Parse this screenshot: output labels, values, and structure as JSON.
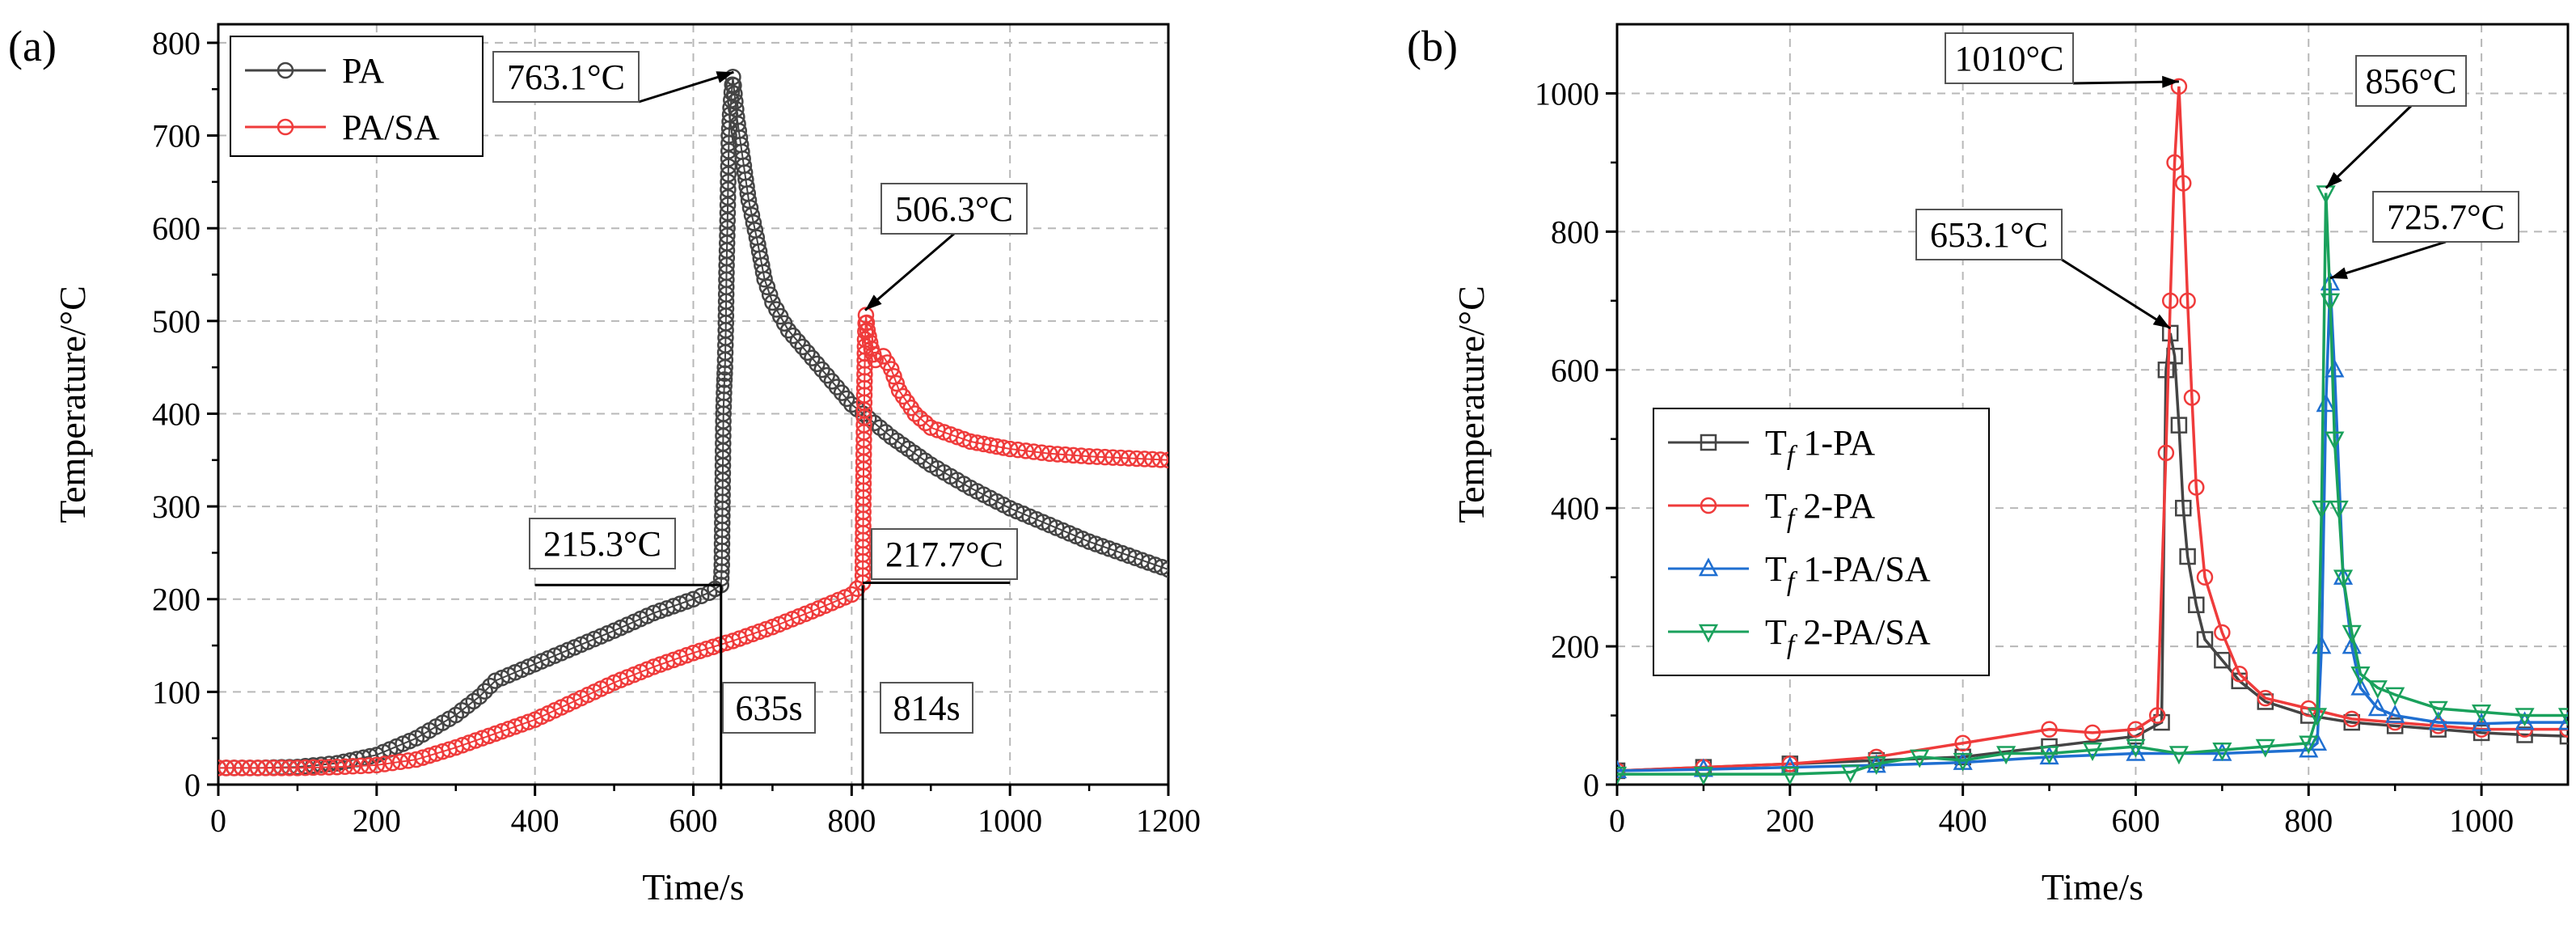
{
  "colors": {
    "pa": "#444444",
    "pasa": "#ef3b3b",
    "tf1_pa": "#444444",
    "tf2_pa": "#ef3b3b",
    "tf1_pasa": "#1f6fd1",
    "tf2_pasa": "#1aa15c",
    "grid": "#b8b8b8"
  },
  "chart_data": [
    {
      "panel_label": "(a)",
      "type": "scatter",
      "title": "",
      "xlabel": "Time/s",
      "ylabel": "Temperature/°C",
      "xlim": [
        0,
        1200
      ],
      "ylim": [
        0,
        820
      ],
      "xticks": [
        0,
        200,
        400,
        600,
        800,
        1000,
        1200
      ],
      "yticks": [
        0,
        100,
        200,
        300,
        400,
        500,
        600,
        700,
        800
      ],
      "grid": true,
      "legend_position": "top-left",
      "series": [
        {
          "name": "PA",
          "color": "#444444",
          "marker": "circle",
          "x": [
            0,
            50,
            100,
            150,
            200,
            250,
            300,
            330,
            350,
            400,
            450,
            500,
            550,
            600,
            620,
            635,
            636,
            637,
            638,
            639,
            640,
            641,
            642,
            643,
            644,
            645,
            647,
            650,
            652,
            655,
            660,
            665,
            670,
            680,
            690,
            700,
            720,
            750,
            800,
            850,
            900,
            950,
            1000,
            1050,
            1100,
            1150,
            1200
          ],
          "y": [
            18,
            18,
            19,
            23,
            32,
            50,
            75,
            95,
            112,
            130,
            148,
            166,
            185,
            200,
            207,
            215.3,
            237,
            320,
            400,
            430,
            450,
            490,
            560,
            600,
            650,
            700,
            730,
            763.1,
            745,
            720,
            690,
            660,
            630,
            590,
            545,
            520,
            490,
            460,
            410,
            375,
            345,
            320,
            298,
            280,
            262,
            247,
            232
          ]
        },
        {
          "name": "PA/SA",
          "color": "#ef3b3b",
          "marker": "circle",
          "x": [
            0,
            50,
            100,
            150,
            200,
            250,
            300,
            350,
            400,
            450,
            500,
            550,
            600,
            650,
            700,
            750,
            800,
            814,
            815,
            816,
            817,
            818,
            820,
            825,
            830,
            840,
            850,
            860,
            880,
            900,
            950,
            1000,
            1050,
            1100,
            1150,
            1200
          ],
          "y": [
            18,
            18,
            18,
            19,
            21,
            27,
            40,
            55,
            70,
            90,
            110,
            127,
            142,
            155,
            170,
            187,
            205,
            217.7,
            340,
            420,
            480,
            506.3,
            490,
            470,
            458,
            462,
            448,
            425,
            400,
            385,
            370,
            362,
            357,
            354,
            352,
            350
          ]
        }
      ],
      "annotations": [
        {
          "text": "763.1°C",
          "x": 651,
          "y": 763.1
        },
        {
          "text": "506.3°C",
          "x": 817,
          "y": 506.3
        },
        {
          "text": "215.3°C",
          "x": 635,
          "y": 215.3
        },
        {
          "text": "217.7°C",
          "x": 814,
          "y": 217.7
        },
        {
          "text": "635s",
          "x": 635,
          "y": 0
        },
        {
          "text": "814s",
          "x": 814,
          "y": 0
        }
      ]
    },
    {
      "panel_label": "(b)",
      "type": "line",
      "title": "",
      "xlabel": "Time/s",
      "ylabel": "Temperature/°C",
      "xlim": [
        0,
        1100
      ],
      "ylim": [
        0,
        1100
      ],
      "xticks": [
        0,
        200,
        400,
        600,
        800,
        1000
      ],
      "yticks": [
        0,
        200,
        400,
        600,
        800,
        1000
      ],
      "grid": true,
      "legend_position": "center-left",
      "series": [
        {
          "name": "T",
          "sub": "f",
          "suffix": " 1-PA",
          "color": "#444444",
          "marker": "square",
          "x": [
            0,
            100,
            200,
            300,
            400,
            500,
            600,
            630,
            635,
            640,
            645,
            650,
            655,
            660,
            670,
            680,
            700,
            720,
            750,
            800,
            850,
            900,
            950,
            1000,
            1050,
            1100
          ],
          "y": [
            20,
            25,
            30,
            35,
            40,
            55,
            70,
            90,
            600,
            653.1,
            620,
            520,
            400,
            330,
            260,
            210,
            180,
            150,
            120,
            100,
            90,
            85,
            80,
            75,
            72,
            70
          ]
        },
        {
          "name": "T",
          "sub": "f",
          "suffix": " 2-PA",
          "color": "#ef3b3b",
          "marker": "circle",
          "x": [
            0,
            100,
            200,
            300,
            400,
            500,
            550,
            600,
            625,
            635,
            640,
            645,
            650,
            655,
            660,
            665,
            670,
            680,
            700,
            720,
            750,
            800,
            850,
            900,
            950,
            1000,
            1050,
            1100
          ],
          "y": [
            20,
            25,
            30,
            40,
            60,
            80,
            75,
            80,
            100,
            480,
            700,
            900,
            1010,
            870,
            700,
            560,
            430,
            300,
            220,
            160,
            125,
            110,
            95,
            90,
            85,
            80,
            80,
            80
          ]
        },
        {
          "name": "T",
          "sub": "f",
          "suffix": " 1-PA/SA",
          "color": "#1f6fd1",
          "marker": "triangle-up",
          "x": [
            0,
            100,
            200,
            300,
            400,
            500,
            600,
            700,
            800,
            810,
            815,
            820,
            825,
            830,
            840,
            850,
            860,
            880,
            900,
            950,
            1000,
            1050,
            1100
          ],
          "y": [
            20,
            22,
            25,
            28,
            32,
            40,
            45,
            45,
            50,
            60,
            200,
            550,
            725.7,
            600,
            300,
            200,
            140,
            110,
            100,
            90,
            88,
            90,
            90
          ]
        },
        {
          "name": "T",
          "sub": "f",
          "suffix": " 2-PA/SA",
          "color": "#1aa15c",
          "marker": "triangle-down",
          "x": [
            0,
            100,
            200,
            270,
            300,
            350,
            400,
            450,
            500,
            550,
            600,
            650,
            700,
            750,
            800,
            810,
            815,
            820,
            825,
            830,
            835,
            840,
            850,
            860,
            880,
            900,
            950,
            1000,
            1050,
            1100
          ],
          "y": [
            15,
            15,
            15,
            18,
            30,
            40,
            35,
            45,
            45,
            50,
            55,
            45,
            50,
            55,
            60,
            100,
            400,
            856,
            700,
            500,
            400,
            300,
            220,
            160,
            140,
            130,
            110,
            105,
            100,
            100
          ]
        }
      ],
      "annotations": [
        {
          "text": "1010°C",
          "x": 650,
          "y": 1010
        },
        {
          "text": "856°C",
          "x": 820,
          "y": 856
        },
        {
          "text": "653.1°C",
          "x": 640,
          "y": 653.1
        },
        {
          "text": "725.7°C",
          "x": 825,
          "y": 725.7
        }
      ]
    }
  ]
}
